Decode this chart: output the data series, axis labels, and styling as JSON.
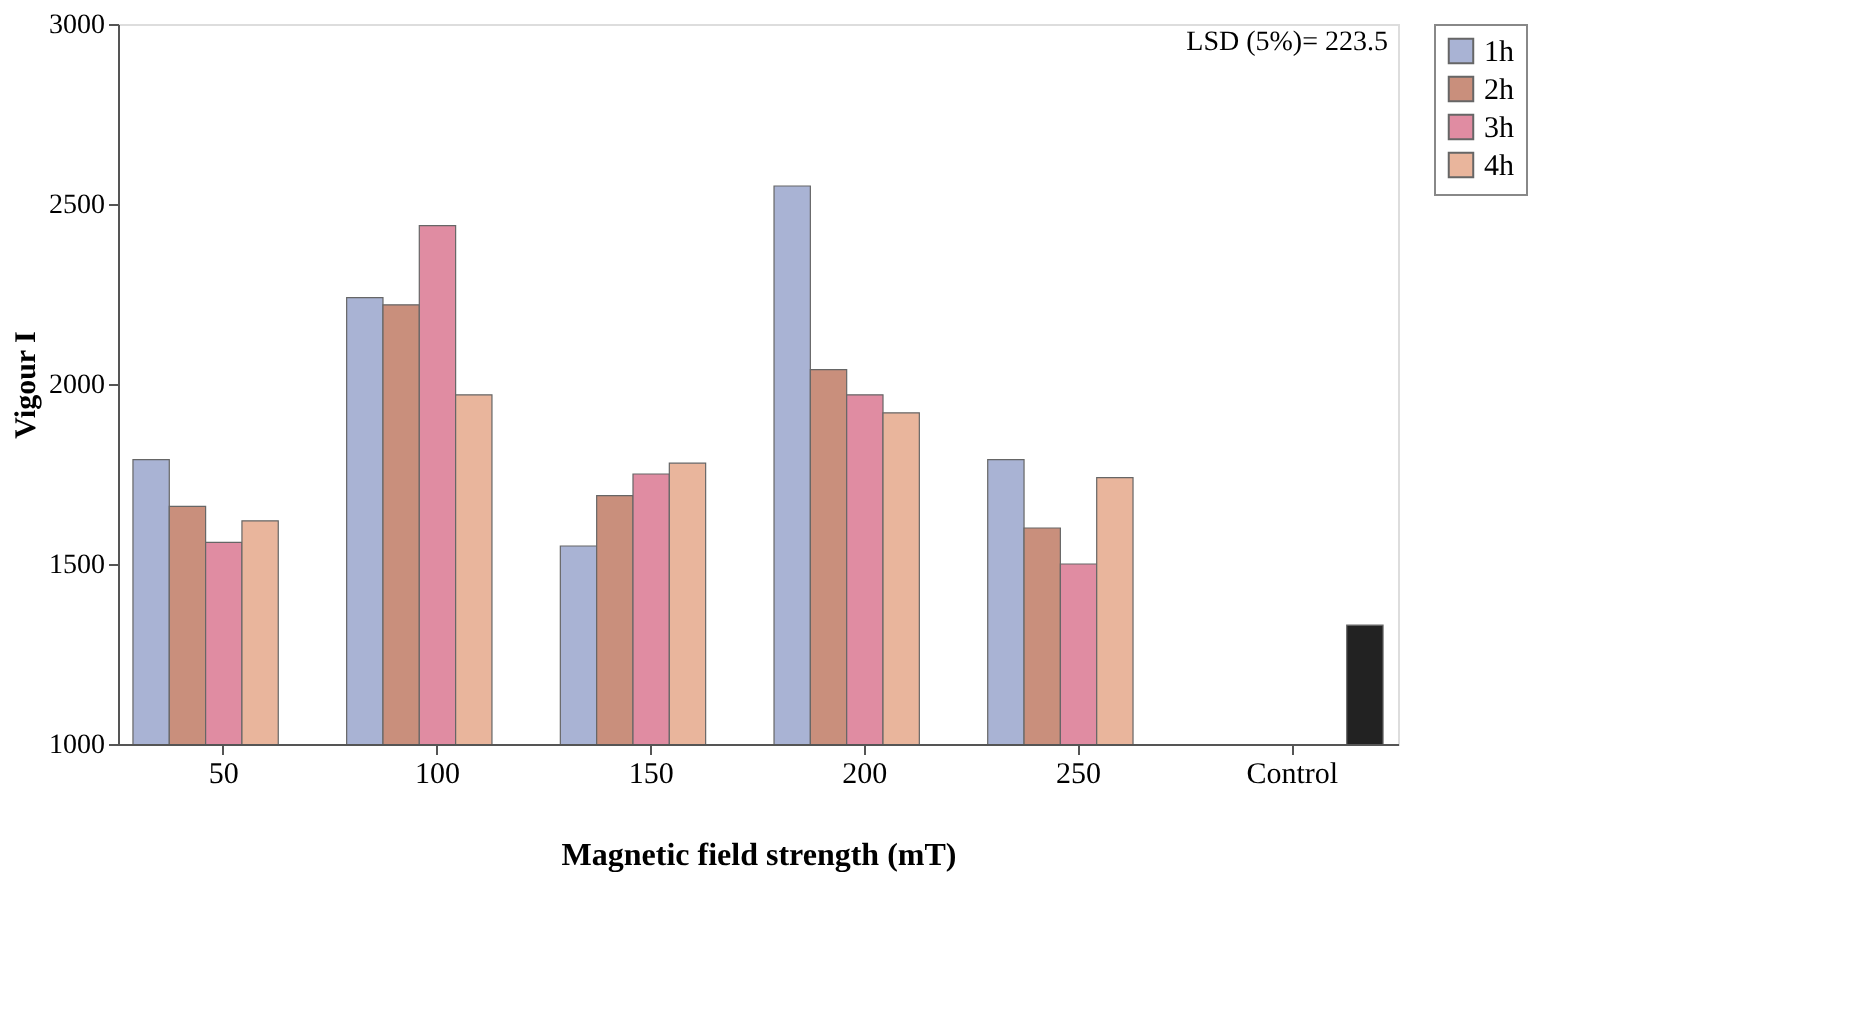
{
  "chart_data": {
    "type": "bar",
    "xlabel": "Magnetic field strength (mT)",
    "ylabel": "Vigour I",
    "categories": [
      "50",
      "100",
      "150",
      "200",
      "250",
      "Control"
    ],
    "series": [
      {
        "name": "1h",
        "color": "#a9b3d4",
        "values": [
          1790,
          2240,
          1550,
          2550,
          1790,
          null
        ]
      },
      {
        "name": "2h",
        "color": "#c98f7c",
        "values": [
          1660,
          2220,
          1690,
          2040,
          1600,
          null
        ]
      },
      {
        "name": "3h",
        "color": "#e08ca2",
        "values": [
          1560,
          2440,
          1750,
          1970,
          1500,
          null
        ]
      },
      {
        "name": "4h",
        "color": "#e9b59c",
        "values": [
          1620,
          1970,
          1780,
          1920,
          1740,
          null
        ]
      },
      {
        "color": "#222222",
        "values": [
          null,
          null,
          null,
          null,
          null,
          1330
        ]
      }
    ],
    "ylim": [
      1000,
      3000
    ],
    "yticks": [
      1000,
      1500,
      2000,
      2500,
      3000
    ],
    "grid": false,
    "legend": "right",
    "annotations": [
      "LSD (5%)= 223.5"
    ]
  }
}
